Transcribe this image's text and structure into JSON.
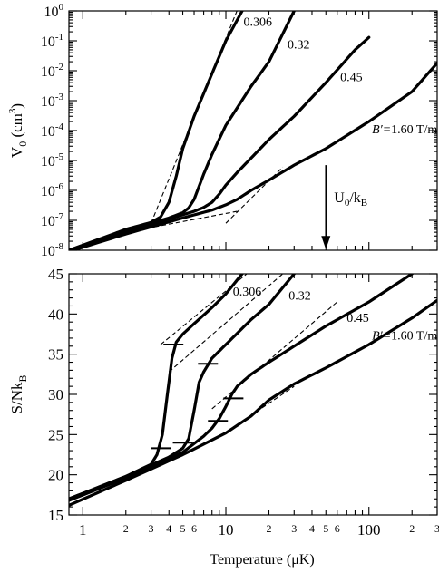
{
  "chart_data": [
    {
      "type": "line",
      "xscale": "log",
      "yscale": "log",
      "xlim": [
        0.8,
        300
      ],
      "ylim": [
        1e-08,
        1
      ],
      "ylabel": "V",
      "ylabel_sub": "0",
      "ylabel_unit": " (cm",
      "ylabel_unit_sup": "3",
      "ylabel_unit_close": ")",
      "yticks": [
        {
          "base": "10",
          "exp": "0",
          "value": 1
        },
        {
          "base": "10",
          "exp": "-1",
          "value": 0.1
        },
        {
          "base": "10",
          "exp": "-2",
          "value": 0.01
        },
        {
          "base": "10",
          "exp": "-3",
          "value": 0.001
        },
        {
          "base": "10",
          "exp": "-4",
          "value": 0.0001
        },
        {
          "base": "10",
          "exp": "-5",
          "value": 1e-05
        },
        {
          "base": "10",
          "exp": "-6",
          "value": 1e-06
        },
        {
          "base": "10",
          "exp": "-7",
          "value": 1e-07
        },
        {
          "base": "10",
          "exp": "-8",
          "value": 1e-08
        }
      ],
      "series": [
        {
          "name": "0.306",
          "x": [
            0.8,
            2,
            3,
            3.5,
            4,
            4.5,
            5,
            6,
            8,
            10,
            13
          ],
          "y": [
            1e-08,
            5e-08,
            8.5e-08,
            1.3e-07,
            4e-07,
            3e-06,
            2.5e-05,
            0.0003,
            0.008,
            0.1,
            1
          ]
        },
        {
          "name": "0.32",
          "x": [
            0.8,
            2,
            4,
            5,
            5.5,
            6,
            7,
            8,
            10,
            15,
            20,
            30
          ],
          "y": [
            1e-08,
            4.6e-08,
            1.2e-07,
            1.8e-07,
            2.6e-07,
            5e-07,
            3.5e-06,
            1.6e-05,
            0.00015,
            0.003,
            0.02,
            1
          ]
        },
        {
          "name": "0.45",
          "x": [
            0.8,
            2,
            4,
            6,
            7,
            8,
            9,
            10,
            12,
            15,
            20,
            30,
            50,
            80,
            100
          ],
          "y": [
            1e-08,
            4e-08,
            1.1e-07,
            2e-07,
            2.7e-07,
            4e-07,
            7.5e-07,
            1.5e-06,
            4e-06,
            1.2e-05,
            5e-05,
            0.0003,
            0.004,
            0.05,
            0.13
          ]
        },
        {
          "name": "1.60 T/m",
          "name_prefix": "B′=",
          "x": [
            0.8,
            2,
            5,
            8,
            10,
            12,
            15,
            20,
            30,
            50,
            100,
            200,
            300
          ],
          "y": [
            9e-09,
            3.5e-08,
            1.2e-07,
            2.2e-07,
            3.3e-07,
            5e-07,
            1e-06,
            2.2e-06,
            7e-06,
            2.5e-05,
            0.0002,
            0.002,
            0.018
          ]
        }
      ],
      "dashed_asymptotes": [
        {
          "x": [
            2,
            12
          ],
          "y": [
            4e-08,
            2e-07
          ]
        },
        {
          "x": [
            3,
            12
          ],
          "y": [
            8e-08,
            1.05
          ]
        },
        {
          "x": [
            10,
            25
          ],
          "y": [
            8e-08,
            6e-06
          ]
        }
      ],
      "annotation": {
        "text": "U",
        "sub": "0",
        "mid": "/k",
        "sub2": "B",
        "arrow_x": 50
      }
    },
    {
      "type": "line",
      "xscale": "log",
      "xlim": [
        0.8,
        300
      ],
      "ylim": [
        15,
        45
      ],
      "xlabel": "Temperature (μK)",
      "ylabel": "S/Nk",
      "ylabel_sub": "B",
      "yticks": [
        "15",
        "20",
        "25",
        "30",
        "35",
        "40",
        "45"
      ],
      "xticks_major": [
        {
          "label": "1",
          "value": 1
        },
        {
          "label": "10",
          "value": 10
        },
        {
          "label": "100",
          "value": 100
        }
      ],
      "xticks_minor": [
        {
          "label": "2",
          "value": 2
        },
        {
          "label": "3",
          "value": 3
        },
        {
          "label": "4",
          "value": 4
        },
        {
          "label": "5",
          "value": 5
        },
        {
          "label": "6",
          "value": 6
        },
        {
          "label": "2",
          "value": 20
        },
        {
          "label": "3",
          "value": 30
        },
        {
          "label": "4",
          "value": 40
        },
        {
          "label": "5",
          "value": 50
        },
        {
          "label": "6",
          "value": 60
        },
        {
          "label": "2",
          "value": 200
        },
        {
          "label": "3",
          "value": 300
        }
      ],
      "series": [
        {
          "name": "0.306",
          "x": [
            0.8,
            2,
            3,
            3.3,
            3.6,
            3.9,
            4.2,
            4.5,
            5,
            6,
            8,
            10,
            13
          ],
          "y": [
            17,
            19.8,
            21.3,
            22.5,
            25,
            30,
            34.5,
            36.5,
            37.5,
            38.8,
            40.8,
            42.5,
            45
          ]
        },
        {
          "name": "0.32",
          "x": [
            0.8,
            2,
            4,
            5,
            5.5,
            6,
            6.5,
            7,
            8,
            10,
            15,
            20,
            30
          ],
          "y": [
            17,
            19.8,
            22.2,
            23.3,
            24.5,
            28,
            31.5,
            32.8,
            34.5,
            36.2,
            39.3,
            41.2,
            45
          ]
        },
        {
          "name": "0.45",
          "x": [
            0.8,
            2,
            5,
            7,
            8,
            9,
            10,
            11,
            12,
            15,
            20,
            30,
            50,
            100,
            200
          ],
          "y": [
            16.8,
            19.6,
            22.8,
            24.8,
            25.8,
            27,
            28.5,
            30,
            31,
            32.5,
            34,
            36,
            38.5,
            41.5,
            45
          ]
        },
        {
          "name": "1.60 T/m",
          "name_prefix": "B′=",
          "x": [
            0.8,
            2,
            5,
            10,
            15,
            20,
            30,
            50,
            100,
            200,
            300
          ],
          "y": [
            16.2,
            19.3,
            22.5,
            25.2,
            27.3,
            29.3,
            31.3,
            33.3,
            36.2,
            39.5,
            41.7
          ]
        }
      ],
      "dashed_asymptotes": [
        {
          "x": [
            3.5,
            14
          ],
          "y": [
            36.2,
            45
          ]
        },
        {
          "x": [
            4,
            25
          ],
          "y": [
            32.8,
            45
          ]
        },
        {
          "x": [
            8,
            60
          ],
          "y": [
            28.2,
            41.5
          ]
        },
        {
          "x": [
            10,
            30
          ],
          "y": [
            25.3,
            31
          ]
        }
      ],
      "tie_marks": [
        {
          "x": 3.5,
          "y": 23.3
        },
        {
          "x": 4.3,
          "y": 36.2
        },
        {
          "x": 5.0,
          "y": 24.0
        },
        {
          "x": 7.5,
          "y": 33.8
        },
        {
          "x": 8.8,
          "y": 26.7
        },
        {
          "x": 11.3,
          "y": 29.5
        }
      ]
    }
  ]
}
